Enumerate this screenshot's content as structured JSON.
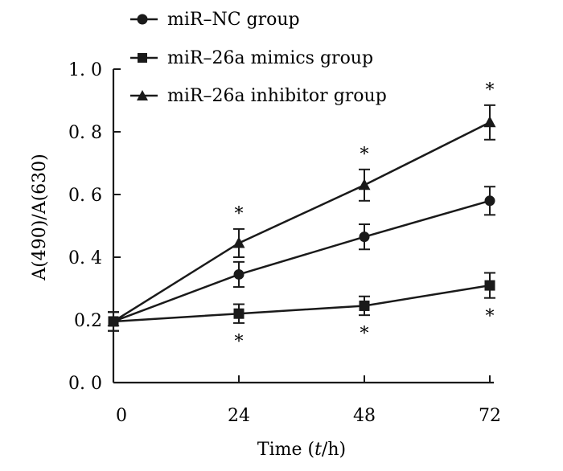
{
  "chart_data": {
    "type": "line",
    "title": "",
    "xlabel": "Time (t/h)",
    "xlabel_parts": {
      "prefix": "Time (",
      "var": "t",
      "suffix": "/h)"
    },
    "ylabel": "A(490)/A(630)",
    "x": [
      0,
      24,
      48,
      72
    ],
    "x_tick_labels": [
      "0",
      "24",
      "48",
      "72"
    ],
    "xlim": [
      0,
      72
    ],
    "ylim": [
      0.0,
      1.0
    ],
    "y_ticks": [
      0.0,
      0.2,
      0.4,
      0.6,
      0.8,
      1.0
    ],
    "y_tick_labels": [
      "0. 0",
      "0.2",
      "0. 4",
      "0. 6",
      "0. 8",
      "1. 0"
    ],
    "grid": false,
    "legend_position": "top-left",
    "series": [
      {
        "name": "miR–NC group",
        "marker": "circle",
        "values": [
          0.195,
          0.345,
          0.465,
          0.58
        ],
        "errors": [
          0.03,
          0.04,
          0.04,
          0.045
        ],
        "significant": [
          false,
          false,
          false,
          false
        ]
      },
      {
        "name": "miR–26a mimics group",
        "marker": "square",
        "values": [
          0.195,
          0.22,
          0.245,
          0.31
        ],
        "errors": [
          0.03,
          0.03,
          0.03,
          0.04
        ],
        "significant": [
          false,
          true,
          true,
          true
        ],
        "significance_position": "below"
      },
      {
        "name": "miR–26a inhibitor group",
        "marker": "triangle",
        "values": [
          0.195,
          0.445,
          0.63,
          0.83
        ],
        "errors": [
          0.03,
          0.045,
          0.05,
          0.055
        ],
        "significant": [
          false,
          true,
          true,
          true
        ],
        "significance_position": "above"
      }
    ],
    "significance_symbol": "*"
  }
}
